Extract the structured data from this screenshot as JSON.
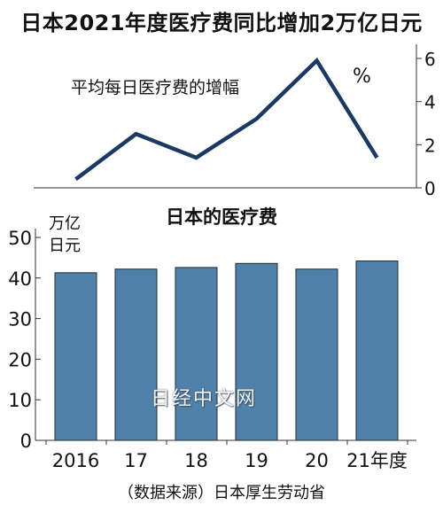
{
  "title": "日本2021年度医疗费同比增加2万亿日元",
  "watermark": "日经中文网",
  "source": "（数据来源）日本厚生劳动省",
  "colors": {
    "line": "#1b3a63",
    "bar": "#4f81aa",
    "bar_outline": "#1e2a36",
    "axis": "#333333"
  },
  "chart_data": [
    {
      "type": "line",
      "label": "平均每日医疗费的增幅",
      "unit": "%",
      "ylim": [
        0,
        6
      ],
      "yticks": [
        "0",
        "2",
        "4",
        "6"
      ],
      "values": [
        0.4,
        2.5,
        1.4,
        3.2,
        5.9,
        1.4
      ],
      "x_labels": [
        "2016",
        "17",
        "18",
        "19",
        "20",
        "21年度"
      ]
    },
    {
      "type": "bar",
      "title": "日本的医疗费",
      "unit": "万亿\n日元",
      "categories": [
        "2016",
        "17",
        "18",
        "19",
        "20",
        "21年度"
      ],
      "values": [
        41.3,
        42.2,
        42.6,
        43.6,
        42.2,
        44.2
      ],
      "ylim": [
        0,
        50
      ],
      "yticks": [
        "0",
        "10",
        "20",
        "30",
        "40",
        "50"
      ]
    }
  ]
}
